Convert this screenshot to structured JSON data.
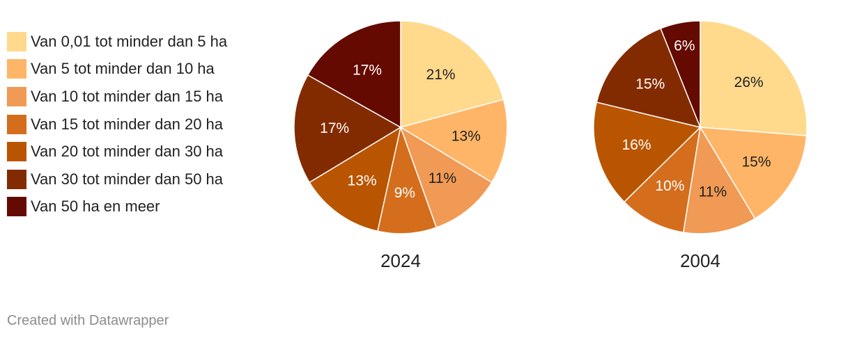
{
  "chart_data": {
    "type": "pie",
    "categories": [
      "Van 0,01 tot minder dan 5 ha",
      "Van 5 tot minder dan 10 ha",
      "Van 10 tot minder dan 15 ha",
      "Van 15 tot minder dan 20 ha",
      "Van 20 tot minder dan 30 ha",
      "Van 30 tot minder dan 50 ha",
      "Van 50 ha en meer"
    ],
    "colors": [
      "#ffd98c",
      "#ffb567",
      "#f09a55",
      "#d46e1d",
      "#b95500",
      "#832b00",
      "#640a00"
    ],
    "label_colors": [
      "#222222",
      "#222222",
      "#222222",
      "#ffffff",
      "#ffffff",
      "#ffffff",
      "#ffffff"
    ],
    "legend_position": "left",
    "series": [
      {
        "name": "2024",
        "values": [
          21,
          13,
          11,
          9,
          13,
          17,
          17
        ],
        "labels": [
          "21%",
          "13%",
          "11%",
          "9%",
          "13%",
          "17%",
          "17%"
        ]
      },
      {
        "name": "2004",
        "values": [
          26,
          15,
          11,
          10,
          16,
          15,
          6
        ],
        "labels": [
          "26%",
          "15%",
          "11%",
          "10%",
          "16%",
          "15%",
          "6%"
        ]
      }
    ]
  },
  "footer": {
    "credit": "Created with Datawrapper"
  }
}
